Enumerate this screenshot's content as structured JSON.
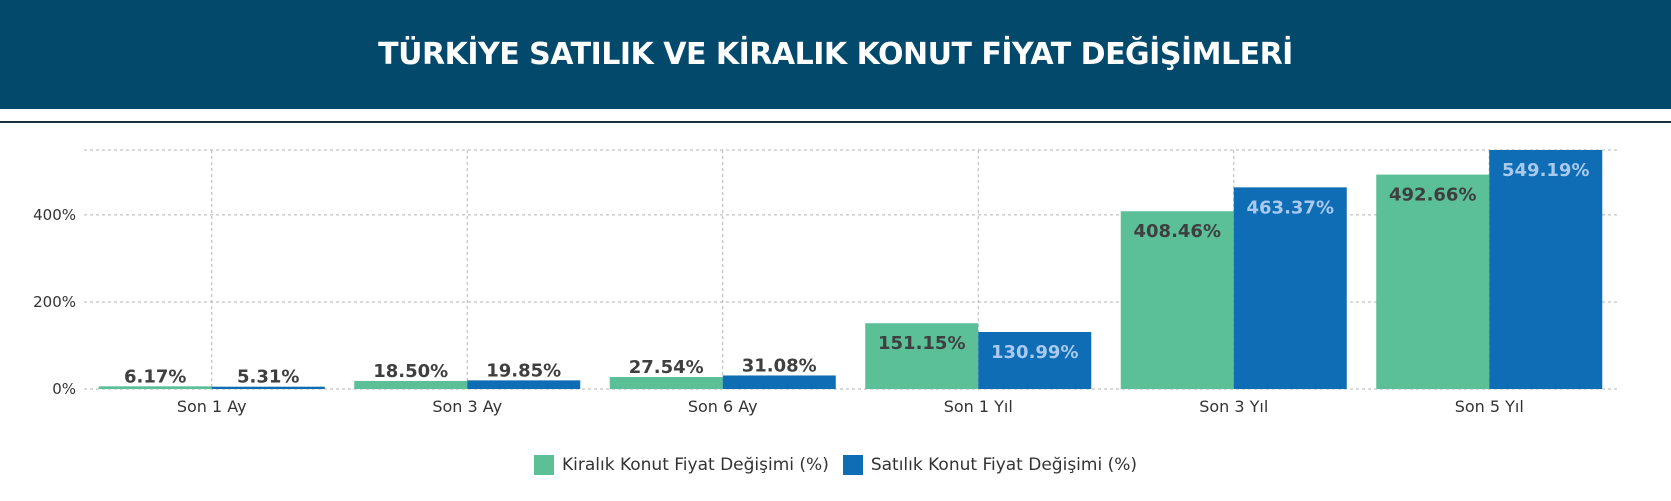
{
  "header": {
    "title": "TÜRKİYE SATILIK VE KİRALIK KONUT FİYAT DEĞİŞİMLERİ"
  },
  "colors": {
    "header_bg": "#02496c",
    "rent": "#5bbf98",
    "sale": "#0f6db5"
  },
  "chart_data": {
    "type": "bar",
    "categories": [
      "Son 1 Ay",
      "Son 3 Ay",
      "Son 6 Ay",
      "Son 1 Yıl",
      "Son 3 Yıl",
      "Son 5 Yıl"
    ],
    "series": [
      {
        "name": "Kiralık Konut Fiyat Değişimi (%)",
        "color": "#5bbf98",
        "values": [
          6.17,
          18.5,
          27.54,
          151.15,
          408.46,
          492.66
        ],
        "labels": [
          "6.17%",
          "18.50%",
          "27.54%",
          "151.15%",
          "408.46%",
          "492.66%"
        ]
      },
      {
        "name": "Satılık Konut Fiyat Değişimi (%)",
        "color": "#0f6db5",
        "values": [
          5.31,
          19.85,
          31.08,
          130.99,
          463.37,
          549.19
        ],
        "labels": [
          "5.31%",
          "19.85%",
          "31.08%",
          "130.99%",
          "463.37%",
          "549.19%"
        ]
      }
    ],
    "yticks": [
      {
        "value": 0,
        "label": "0%"
      },
      {
        "value": 200,
        "label": "200%"
      },
      {
        "value": 400,
        "label": "400%"
      }
    ],
    "ylim": [
      0,
      549.19
    ],
    "grid": true,
    "legend_position": "bottom-center"
  }
}
